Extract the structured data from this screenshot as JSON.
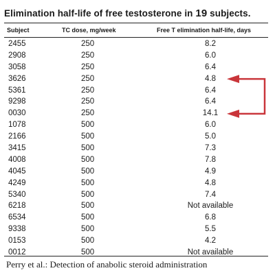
{
  "title": {
    "prefix": "Elimination half-life of free testosterone in ",
    "count": "19",
    "suffix": " subjects."
  },
  "columns": {
    "subject": "Subject",
    "dose": "TC dose, mg/week",
    "halflife": "Free T elimination half-life, days"
  },
  "rows": [
    {
      "subject": "2455",
      "dose": "250",
      "halflife": "8.2"
    },
    {
      "subject": "2908",
      "dose": "250",
      "halflife": "6.0"
    },
    {
      "subject": "3058",
      "dose": "250",
      "halflife": "6.4"
    },
    {
      "subject": "3626",
      "dose": "250",
      "halflife": "4.8"
    },
    {
      "subject": "5361",
      "dose": "250",
      "halflife": "6.4"
    },
    {
      "subject": "9298",
      "dose": "250",
      "halflife": "6.4"
    },
    {
      "subject": "0030",
      "dose": "250",
      "halflife": "14.1"
    },
    {
      "subject": "1078",
      "dose": "500",
      "halflife": "6.0"
    },
    {
      "subject": "2166",
      "dose": "500",
      "halflife": "5.0"
    },
    {
      "subject": "3415",
      "dose": "500",
      "halflife": "7.3"
    },
    {
      "subject": "4008",
      "dose": "500",
      "halflife": "7.8"
    },
    {
      "subject": "4045",
      "dose": "500",
      "halflife": "4.9"
    },
    {
      "subject": "4249",
      "dose": "500",
      "halflife": "4.8"
    },
    {
      "subject": "5340",
      "dose": "500",
      "halflife": "7.4"
    },
    {
      "subject": "6218",
      "dose": "500",
      "halflife": "Not available"
    },
    {
      "subject": "6534",
      "dose": "500",
      "halflife": "6.8"
    },
    {
      "subject": "9338",
      "dose": "500",
      "halflife": "5.5"
    },
    {
      "subject": "0153",
      "dose": "500",
      "halflife": "4.2"
    },
    {
      "subject": "0012",
      "dose": "500",
      "halflife": "Not available"
    }
  ],
  "annotation": {
    "arrow_color": "#c9353a",
    "connects_subjects": [
      "3626",
      "0030"
    ]
  },
  "caption": "Perry et al.: Detection of anabolic steroid administration"
}
